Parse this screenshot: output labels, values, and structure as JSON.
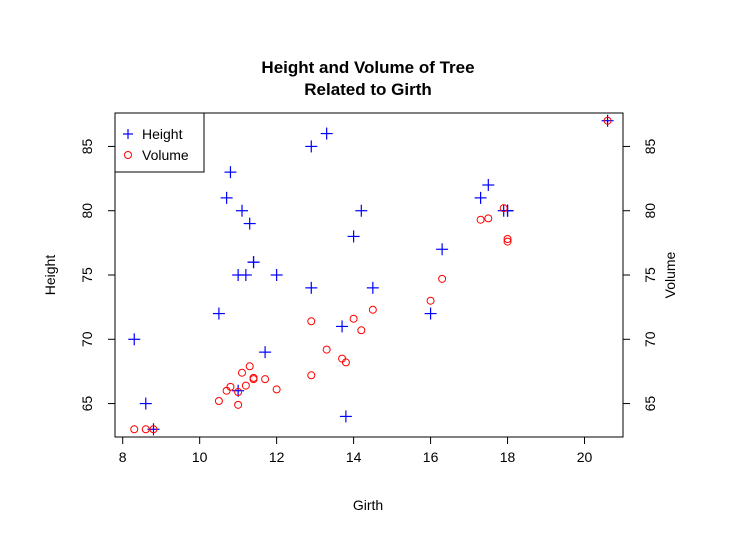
{
  "chart_data": {
    "type": "scatter",
    "title": "Height and Volume of Tree",
    "subtitle": "Related to Girth",
    "xlabel": "Girth",
    "ylabel": "Height",
    "y2label": "Volume",
    "xlim": [
      7.8,
      21.0
    ],
    "ylim": [
      62.4,
      87.6
    ],
    "xticks": [
      8,
      10,
      12,
      14,
      16,
      18,
      20
    ],
    "yticks": [
      65,
      70,
      75,
      80,
      85
    ],
    "y2ticks": [
      65,
      70,
      75,
      80,
      85
    ],
    "grid": false,
    "legend_position": "top-left",
    "series": [
      {
        "name": "Height",
        "marker": "plus",
        "color": "#0000ff",
        "x": [
          8.3,
          8.6,
          8.8,
          10.5,
          10.7,
          10.8,
          11.0,
          11.0,
          11.1,
          11.2,
          11.3,
          11.4,
          11.4,
          11.7,
          12.0,
          12.9,
          12.9,
          13.3,
          13.7,
          13.8,
          14.0,
          14.2,
          14.5,
          16.0,
          16.3,
          17.3,
          17.5,
          17.9,
          18.0,
          18.0,
          20.6
        ],
        "y": [
          70,
          65,
          63,
          72,
          81,
          83,
          66,
          75,
          80,
          75,
          79,
          76,
          76,
          69,
          75,
          74,
          85,
          86,
          71,
          64,
          78,
          80,
          74,
          72,
          77,
          81,
          82,
          80,
          80,
          80,
          87
        ]
      },
      {
        "name": "Volume",
        "marker": "circle",
        "color": "#ff0000",
        "x": [
          8.3,
          8.6,
          8.8,
          10.5,
          10.7,
          10.8,
          11.0,
          11.0,
          11.1,
          11.2,
          11.3,
          11.4,
          11.4,
          11.7,
          12.0,
          12.9,
          12.9,
          13.3,
          13.7,
          13.8,
          14.0,
          14.2,
          14.5,
          16.0,
          16.3,
          17.3,
          17.5,
          17.9,
          18.0,
          18.0,
          20.6
        ],
        "y": [
          63.0,
          63.0,
          63.0,
          65.2,
          66.0,
          66.3,
          65.9,
          64.9,
          67.4,
          66.4,
          67.9,
          66.9,
          67.0,
          66.9,
          66.1,
          67.2,
          71.4,
          69.2,
          68.5,
          68.2,
          71.6,
          70.7,
          72.3,
          73.0,
          74.7,
          79.3,
          79.4,
          80.2,
          77.8,
          77.6,
          87.0
        ]
      }
    ]
  }
}
